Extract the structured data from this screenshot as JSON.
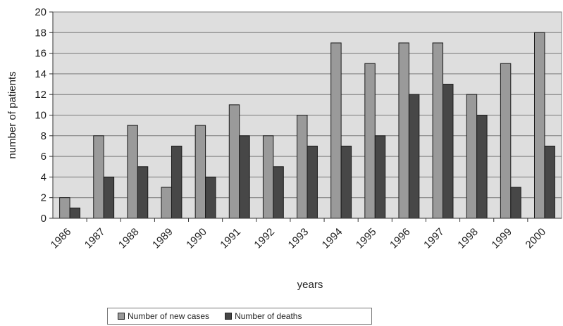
{
  "chart_data": {
    "type": "bar",
    "title": "",
    "xlabel": "years",
    "ylabel": "number of patients",
    "ylim": [
      0,
      20
    ],
    "yticks": [
      "0",
      "2",
      "4",
      "6",
      "8",
      "10",
      "12",
      "14",
      "16",
      "18",
      "20"
    ],
    "grid": true,
    "legend_position": "bottom",
    "categories": [
      "1986",
      "1987",
      "1988",
      "1989",
      "1990",
      "1991",
      "1992",
      "1993",
      "1994",
      "1995",
      "1996",
      "1997",
      "1998",
      "1999",
      "2000"
    ],
    "series": [
      {
        "name": "Number of new cases",
        "color": "#9a9a9a",
        "values": [
          2,
          8,
          9,
          3,
          9,
          11,
          8,
          10,
          17,
          15,
          17,
          17,
          12,
          15,
          18
        ]
      },
      {
        "name": "Number of deaths",
        "color": "#474747",
        "values": [
          1,
          4,
          5,
          7,
          4,
          8,
          5,
          7,
          7,
          8,
          12,
          13,
          10,
          3,
          7
        ]
      }
    ],
    "plot_background": "#dedede",
    "gridline_color": "#7a7a7a"
  }
}
